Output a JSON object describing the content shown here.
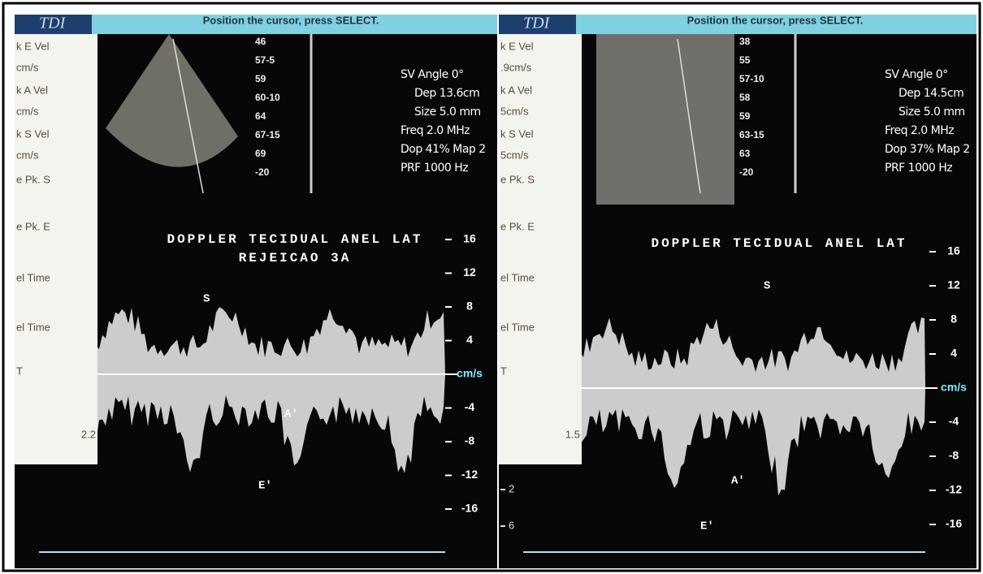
{
  "panels": [
    {
      "header": {
        "mode": "TDI",
        "prompt": "Position the cursor, press SELECT."
      },
      "menu": [
        "k E Vel",
        "cm/s",
        "k A Vel",
        "cm/s",
        "k S Vel",
        "cm/s",
        "e Pk. S",
        "e Pk. E",
        "el Time",
        "el Time",
        "T",
        "2.2"
      ],
      "depth_scale": [
        "46",
        "57-5",
        "59",
        "60-10",
        "64",
        "67-15",
        "69",
        "-20"
      ],
      "settings": [
        "SV Angle 0°",
        "Dep 13.6cm",
        "Size 5.0 mm",
        "Freq 2.0 MHz",
        "Dop 41% Map 2",
        "PRF 1000 Hz"
      ],
      "title": [
        "DOPPLER TECIDUAL ANEL LAT",
        "REJEICAO 3A"
      ],
      "velocity_scale": [
        "16",
        "12",
        "8",
        "4",
        "cm/s",
        "-4",
        "-8",
        "-12",
        "-16"
      ],
      "markers": {
        "s": "S",
        "a": "A'",
        "e": "E'"
      }
    },
    {
      "header": {
        "mode": "TDI",
        "prompt": "Position the cursor, press SELECT."
      },
      "menu": [
        "k E Vel",
        ".9cm/s",
        "k A Vel",
        "5cm/s",
        "k S Vel",
        "5cm/s",
        "e Pk. S",
        "e Pk. E",
        "el Time",
        "el Time",
        "T",
        "1.5",
        "2",
        "6"
      ],
      "depth_scale": [
        "38",
        "55",
        "57-10",
        "58",
        "59",
        "63-15",
        "63",
        "-20"
      ],
      "settings": [
        "SV Angle 0°",
        "Dep 14.5cm",
        "Size 5.0 mm",
        "Freq 2.0 MHz",
        "Dop 37% Map 2",
        "PRF 1000 Hz"
      ],
      "title": [
        "DOPPLER TECIDUAL ANEL LAT"
      ],
      "velocity_scale": [
        "16",
        "12",
        "8",
        "4",
        "cm/s",
        "-4",
        "-8",
        "-12",
        "-16"
      ],
      "markers": {
        "s": "S",
        "a": "A'",
        "e": "E'"
      }
    }
  ]
}
